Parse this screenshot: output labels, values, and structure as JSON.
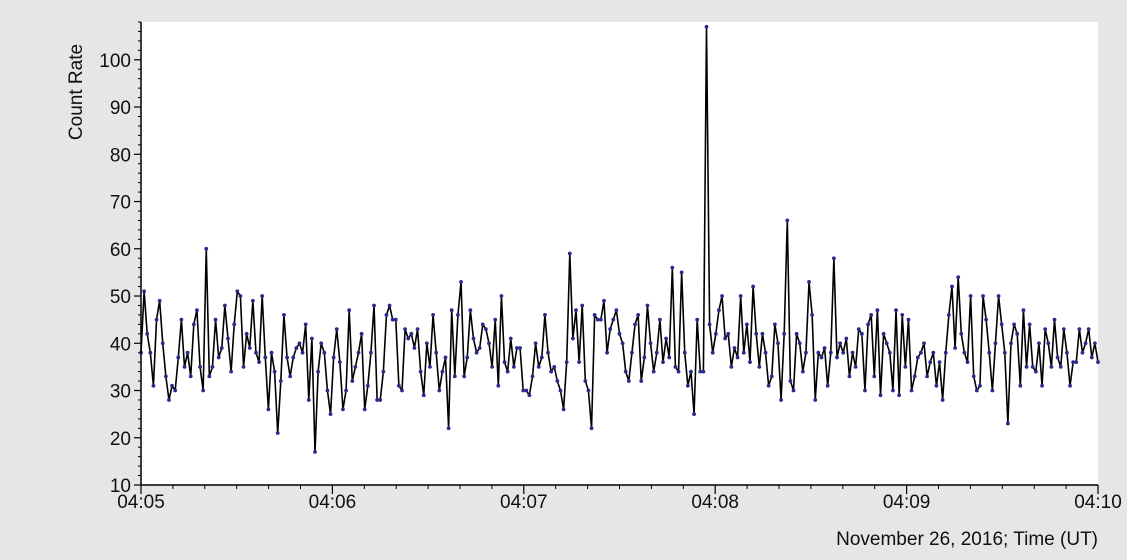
{
  "chart_data": {
    "type": "line",
    "title": "",
    "xlabel": "November 26, 2016; Time (UT)",
    "ylabel": "Count Rate",
    "x_start_label": "04:05",
    "x_end_label": "04:10",
    "xlim_seconds": [
      0,
      300
    ],
    "ylim": [
      10,
      108
    ],
    "x_ticks": [
      "04:05",
      "04:06",
      "04:07",
      "04:08",
      "04:09",
      "04:10"
    ],
    "y_ticks": [
      10,
      20,
      30,
      40,
      50,
      60,
      70,
      80,
      90,
      100
    ],
    "grid": false,
    "line_color": "#000000",
    "marker_color": "#2a2a8c",
    "series": [
      {
        "values": [
          38,
          51,
          42,
          38,
          31,
          45,
          49,
          40,
          33,
          28,
          31,
          30,
          37,
          45,
          35,
          38,
          33,
          44,
          47,
          35,
          30,
          60,
          33,
          35,
          45,
          37,
          39,
          48,
          41,
          34,
          44,
          51,
          50,
          35,
          42,
          39,
          49,
          38,
          36,
          50,
          37,
          26,
          38,
          34,
          21,
          32,
          46,
          37,
          33,
          37,
          39,
          40,
          38,
          44,
          28,
          41,
          17,
          34,
          40,
          38,
          30,
          25,
          37,
          43,
          36,
          26,
          30,
          47,
          32,
          35,
          38,
          42,
          26,
          31,
          38,
          48,
          28,
          28,
          34,
          46,
          48,
          45,
          45,
          31,
          30,
          43,
          41,
          42,
          39,
          43,
          34,
          29,
          40,
          35,
          46,
          38,
          30,
          34,
          37,
          22,
          47,
          33,
          46,
          53,
          33,
          37,
          47,
          41,
          38,
          39,
          44,
          43,
          40,
          35,
          45,
          31,
          50,
          36,
          34,
          41,
          35,
          39,
          39,
          30,
          30,
          29,
          33,
          40,
          35,
          37,
          46,
          38,
          34,
          35,
          32,
          30,
          26,
          36,
          59,
          41,
          47,
          36,
          48,
          32,
          30,
          22,
          46,
          45,
          45,
          49,
          38,
          43,
          45,
          47,
          42,
          40,
          34,
          32,
          38,
          44,
          46,
          32,
          37,
          48,
          40,
          34,
          38,
          45,
          36,
          41,
          37,
          56,
          35,
          34,
          55,
          38,
          31,
          34,
          25,
          45,
          34,
          34,
          107,
          44,
          38,
          42,
          47,
          50,
          41,
          42,
          35,
          39,
          37,
          50,
          38,
          44,
          36,
          52,
          42,
          35,
          42,
          38,
          31,
          33,
          44,
          40,
          28,
          42,
          66,
          32,
          30,
          42,
          40,
          34,
          38,
          53,
          46,
          28,
          38,
          37,
          39,
          31,
          38,
          58,
          37,
          40,
          38,
          41,
          33,
          38,
          35,
          43,
          42,
          30,
          44,
          46,
          33,
          47,
          29,
          42,
          40,
          38,
          30,
          47,
          29,
          46,
          35,
          45,
          30,
          33,
          37,
          38,
          40,
          33,
          36,
          38,
          31,
          36,
          28,
          38,
          46,
          52,
          39,
          54,
          42,
          38,
          36,
          50,
          33,
          30,
          31,
          50,
          45,
          38,
          30,
          40,
          50,
          44,
          38,
          23,
          40,
          44,
          42,
          31,
          47,
          35,
          44,
          35,
          34,
          40,
          31,
          43,
          40,
          35,
          45,
          37,
          35,
          43,
          38,
          31,
          36,
          36,
          43,
          38,
          40,
          43,
          37,
          40,
          36
        ]
      }
    ]
  }
}
